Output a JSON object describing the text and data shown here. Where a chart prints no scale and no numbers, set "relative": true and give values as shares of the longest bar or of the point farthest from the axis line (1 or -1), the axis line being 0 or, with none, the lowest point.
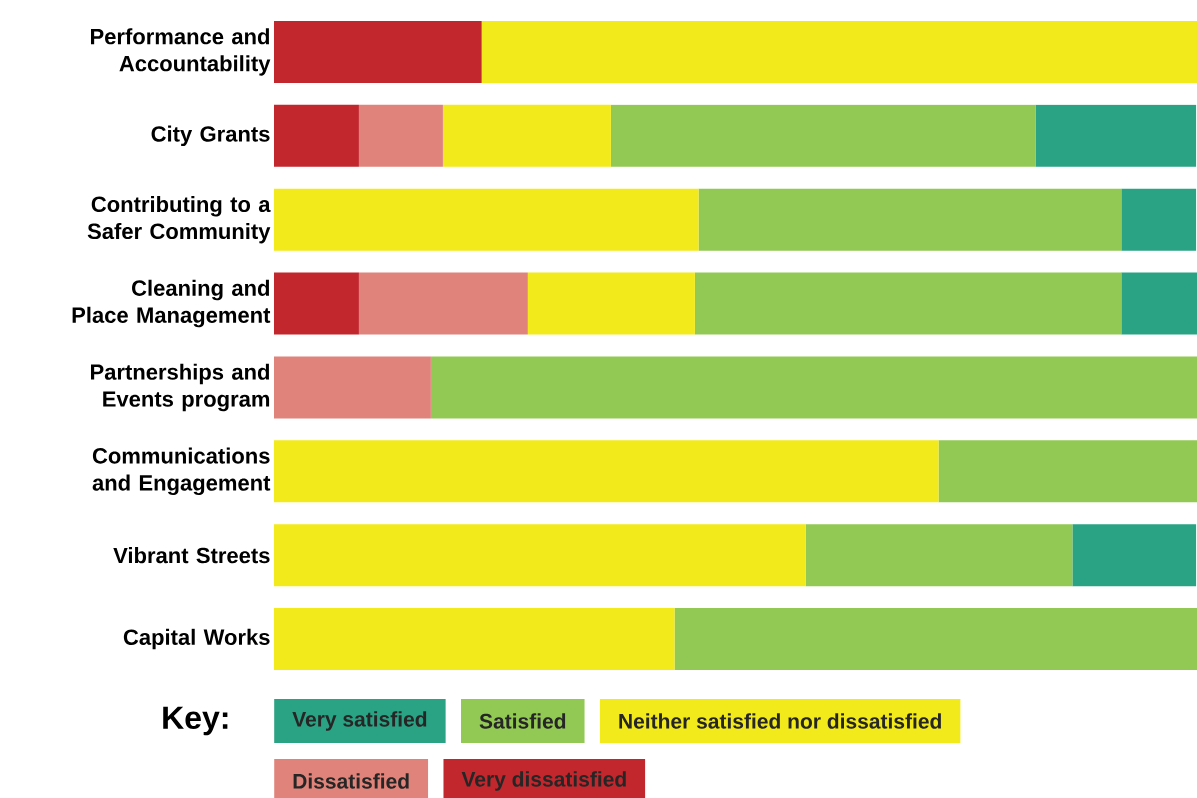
{
  "chart_data": {
    "type": "bar",
    "orientation": "horizontal",
    "stacked": true,
    "relative": true,
    "legend": "bottom",
    "legend_title": "Key:",
    "categories": [
      "Performance and Accountability",
      "City Grants",
      "Contributing to a Safer Community",
      "Cleaning and Place Management",
      "Partnerships and Events program",
      "Communications and Engagement",
      "Vibrant Streets",
      "Capital Works"
    ],
    "series": [
      {
        "name": "Very dissatisfied",
        "color": "#c1272d",
        "values": [
          0.225,
          0.092,
          0,
          0.092,
          0,
          0,
          0,
          0
        ]
      },
      {
        "name": "Dissatisfied",
        "color": "#e0837a",
        "values": [
          0,
          0.091,
          0,
          0.183,
          0.17,
          0,
          0,
          0
        ]
      },
      {
        "name": "Neither satisfied nor dissatisfied",
        "color": "#f2ea1a",
        "values": [
          0.775,
          0.182,
          0.46,
          0.181,
          0,
          0.72,
          0.576,
          0.434
        ]
      },
      {
        "name": "Satisfied",
        "color": "#92c954",
        "values": [
          0,
          0.46,
          0.458,
          0.462,
          0.83,
          0.28,
          0.289,
          0.566
        ]
      },
      {
        "name": "Very satisfied",
        "color": "#29a383",
        "values": [
          0,
          0.174,
          0.081,
          0.082,
          0,
          0,
          0.134,
          0
        ]
      }
    ]
  }
}
